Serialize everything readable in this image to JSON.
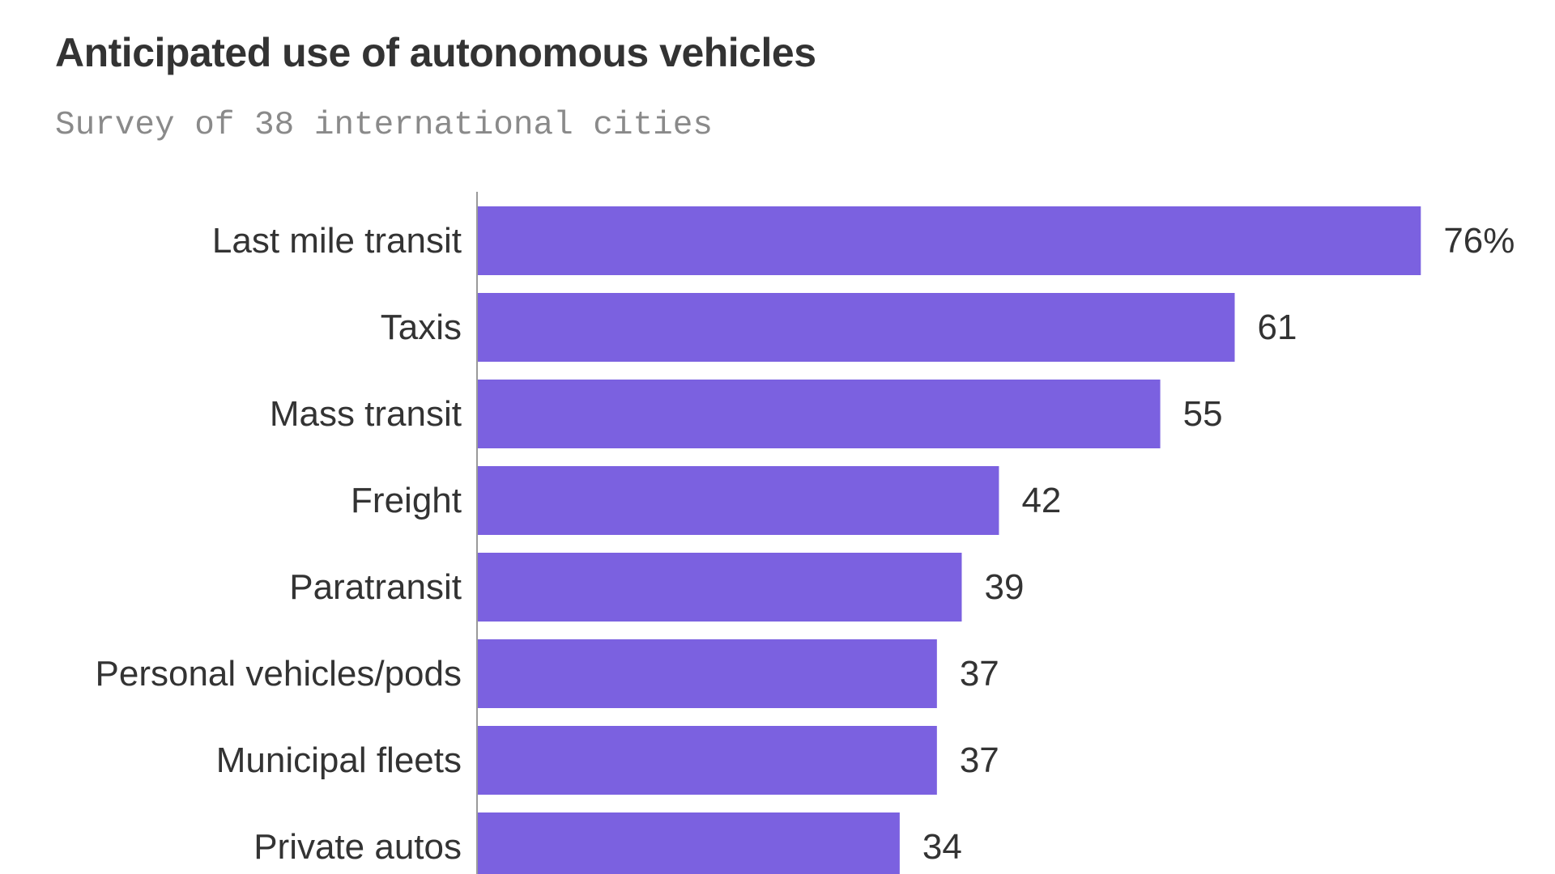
{
  "title": "Anticipated use of autonomous vehicles",
  "subtitle": "Survey of 38 international cities",
  "colors": {
    "bar": "#7B61E0",
    "axis": "#9a9a9a",
    "text": "#333333",
    "subtitle": "#8a8a8a"
  },
  "chart_data": {
    "type": "bar",
    "orientation": "horizontal",
    "title": "Anticipated use of autonomous vehicles",
    "subtitle": "Survey of 38 international cities",
    "categories": [
      "Last mile transit",
      "Taxis",
      "Mass transit",
      "Freight",
      "Paratransit",
      "Personal vehicles/pods",
      "Municipal fleets",
      "Private autos"
    ],
    "values": [
      76,
      61,
      55,
      42,
      39,
      37,
      37,
      34
    ],
    "value_labels": [
      "76%",
      "61",
      "55",
      "42",
      "39",
      "37",
      "37",
      "34"
    ],
    "xlabel": "",
    "ylabel": "",
    "grid": false,
    "legend": "none"
  }
}
